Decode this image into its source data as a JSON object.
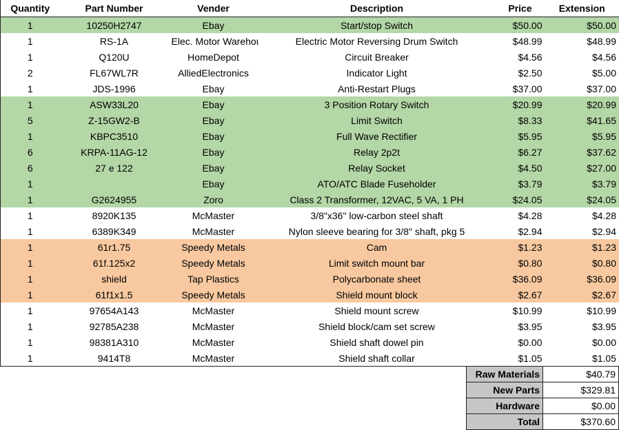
{
  "headers": {
    "quantity": "Quantity",
    "part_number": "Part Number",
    "vender": "Vender",
    "description": "Description",
    "price": "Price",
    "extension": "Extension"
  },
  "row_colors": {
    "green": "#b3d7a6",
    "orange": "#f8c9a0",
    "white": "#ffffff",
    "totals_label": "#c6c6c6"
  },
  "rows": [
    {
      "qty": "1",
      "part": "10250H2747",
      "vendor": "Ebay",
      "desc": "Start/stop Switch",
      "price": "$50.00",
      "ext": "$50.00",
      "color": "green"
    },
    {
      "qty": "1",
      "part": "RS-1A",
      "vendor": "Elec. Motor Warehouse",
      "desc": "Electric Motor Reversing Drum Switch",
      "price": "$48.99",
      "ext": "$48.99",
      "color": "white"
    },
    {
      "qty": "1",
      "part": "Q120U",
      "vendor": "HomeDepot",
      "desc": "Circuit Breaker",
      "price": "$4.56",
      "ext": "$4.56",
      "color": "white"
    },
    {
      "qty": "2",
      "part": "FL67WL7R",
      "vendor": "AlliedElectronics",
      "desc": "Indicator Light",
      "price": "$2.50",
      "ext": "$5.00",
      "color": "white"
    },
    {
      "qty": "1",
      "part": "JDS-1996",
      "vendor": "Ebay",
      "desc": "Anti-Restart Plugs",
      "price": "$37.00",
      "ext": "$37.00",
      "color": "white"
    },
    {
      "qty": "1",
      "part": "ASW33L20",
      "vendor": "Ebay",
      "desc": "3 Position Rotary Switch",
      "price": "$20.99",
      "ext": "$20.99",
      "color": "green"
    },
    {
      "qty": "5",
      "part": "Z-15GW2-B",
      "vendor": "Ebay",
      "desc": "Limit Switch",
      "price": "$8.33",
      "ext": "$41.65",
      "color": "green"
    },
    {
      "qty": "1",
      "part": "KBPC3510",
      "vendor": "Ebay",
      "desc": "Full Wave Rectifier",
      "price": "$5.95",
      "ext": "$5.95",
      "color": "green"
    },
    {
      "qty": "6",
      "part": "KRPA-11AG-12",
      "vendor": "Ebay",
      "desc": "Relay 2p2t",
      "price": "$6.27",
      "ext": "$37.62",
      "color": "green"
    },
    {
      "qty": "6",
      "part": "27 e 122",
      "vendor": "Ebay",
      "desc": "Relay Socket",
      "price": "$4.50",
      "ext": "$27.00",
      "color": "green"
    },
    {
      "qty": "1",
      "part": "",
      "vendor": "Ebay",
      "desc": "ATO/ATC Blade Fuseholder",
      "price": "$3.79",
      "ext": "$3.79",
      "color": "green"
    },
    {
      "qty": "1",
      "part": "G2624955",
      "vendor": "Zoro",
      "desc": "Class 2 Transformer, 12VAC, 5 VA, 1 PH",
      "price": "$24.05",
      "ext": "$24.05",
      "color": "green"
    },
    {
      "qty": "1",
      "part": "8920K135",
      "vendor": "McMaster",
      "desc": "3/8\"x36\" low-carbon steel shaft",
      "price": "$4.28",
      "ext": "$4.28",
      "color": "white"
    },
    {
      "qty": "1",
      "part": "6389K349",
      "vendor": "McMaster",
      "desc": "Nylon sleeve bearing for 3/8\" shaft, pkg 5",
      "price": "$2.94",
      "ext": "$2.94",
      "color": "white"
    },
    {
      "qty": "1",
      "part": "61r1.75",
      "vendor": "Speedy Metals",
      "desc": "Cam",
      "price": "$1.23",
      "ext": "$1.23",
      "color": "orange"
    },
    {
      "qty": "1",
      "part": "61f.125x2",
      "vendor": "Speedy Metals",
      "desc": "Limit switch mount bar",
      "price": "$0.80",
      "ext": "$0.80",
      "color": "orange"
    },
    {
      "qty": "1",
      "part": "shield",
      "vendor": "Tap Plastics",
      "desc": "Polycarbonate sheet",
      "price": "$36.09",
      "ext": "$36.09",
      "color": "orange"
    },
    {
      "qty": "1",
      "part": "61f1x1.5",
      "vendor": "Speedy Metals",
      "desc": "Shield mount block",
      "price": "$2.67",
      "ext": "$2.67",
      "color": "orange"
    },
    {
      "qty": "1",
      "part": "97654A143",
      "vendor": "McMaster",
      "desc": "Shield mount screw",
      "price": "$10.99",
      "ext": "$10.99",
      "color": "white"
    },
    {
      "qty": "1",
      "part": "92785A238",
      "vendor": "McMaster",
      "desc": "Shield block/cam set screw",
      "price": "$3.95",
      "ext": "$3.95",
      "color": "white"
    },
    {
      "qty": "1",
      "part": "98381A310",
      "vendor": "McMaster",
      "desc": "Shield shaft dowel pin",
      "price": "$0.00",
      "ext": "$0.00",
      "color": "white"
    },
    {
      "qty": "1",
      "part": "9414T8",
      "vendor": "McMaster",
      "desc": "Shield shaft collar",
      "price": "$1.05",
      "ext": "$1.05",
      "color": "white"
    }
  ],
  "totals": [
    {
      "label": "Raw Materials",
      "value": "$40.79"
    },
    {
      "label": "New Parts",
      "value": "$329.81"
    },
    {
      "label": "Hardware",
      "value": "$0.00"
    },
    {
      "label": "Total",
      "value": "$370.60"
    }
  ]
}
